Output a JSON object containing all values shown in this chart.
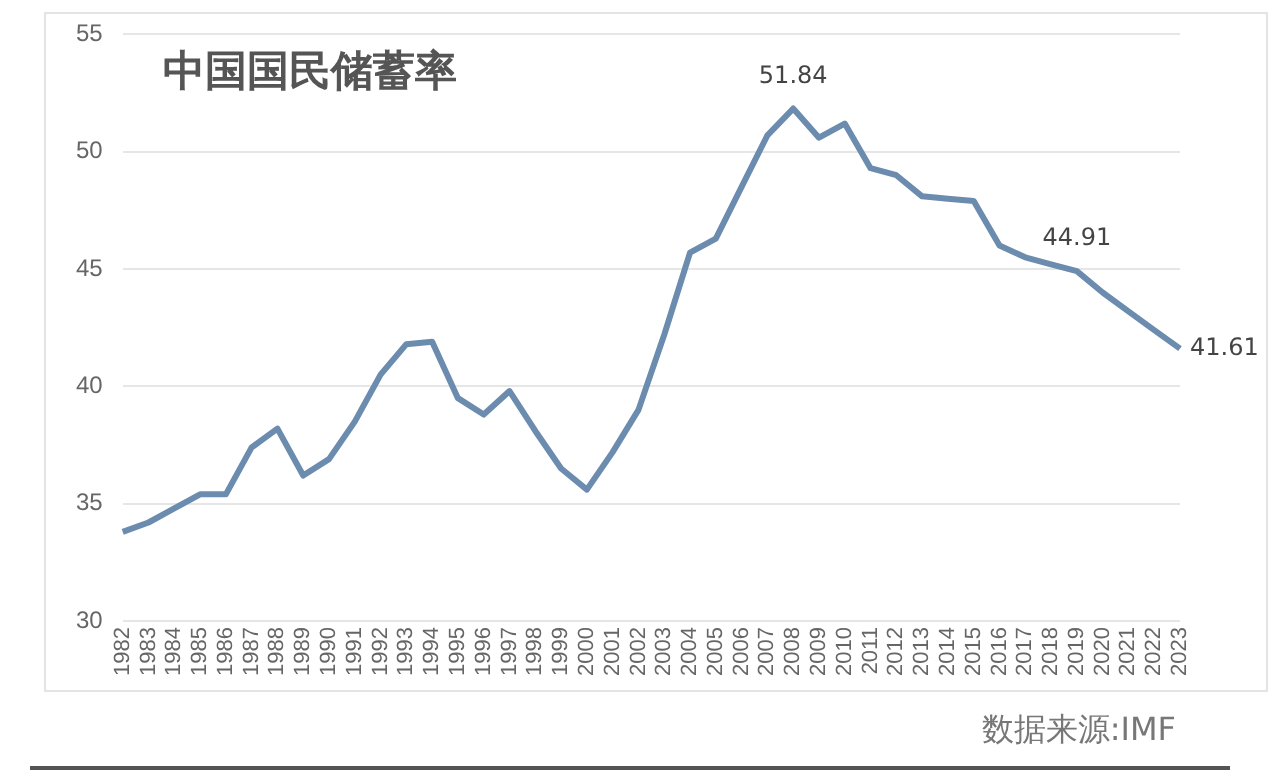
{
  "chart_data": {
    "type": "line",
    "title": "中国国民储蓄率",
    "categories": [
      "1982",
      "1983",
      "1984",
      "1985",
      "1986",
      "1987",
      "1988",
      "1989",
      "1990",
      "1991",
      "1992",
      "1993",
      "1994",
      "1995",
      "1996",
      "1997",
      "1998",
      "1999",
      "2000",
      "2001",
      "2002",
      "2003",
      "2004",
      "2005",
      "2006",
      "2007",
      "2008",
      "2009",
      "2010",
      "2011",
      "2012",
      "2013",
      "2014",
      "2015",
      "2016",
      "2017",
      "2018",
      "2019",
      "2020",
      "2021",
      "2022",
      "2023"
    ],
    "series": [
      {
        "color": "#6b8cae",
        "values": [
          33.8,
          34.2,
          34.8,
          35.4,
          35.4,
          37.4,
          38.2,
          36.2,
          36.9,
          38.5,
          40.5,
          41.8,
          41.9,
          39.5,
          38.8,
          39.8,
          38.1,
          36.5,
          35.6,
          37.2,
          39.0,
          42.2,
          45.7,
          46.3,
          48.5,
          50.7,
          51.84,
          50.6,
          51.2,
          49.3,
          49.0,
          48.1,
          48.0,
          47.9,
          46.0,
          45.5,
          45.2,
          44.91,
          44.0,
          43.2,
          42.4,
          41.61
        ],
        "value_labels": [
          null,
          null,
          null,
          null,
          null,
          null,
          null,
          null,
          null,
          null,
          null,
          null,
          null,
          null,
          null,
          null,
          null,
          null,
          null,
          null,
          null,
          null,
          null,
          null,
          null,
          null,
          "51.84",
          null,
          null,
          null,
          null,
          null,
          null,
          null,
          null,
          null,
          null,
          "44.91",
          null,
          null,
          null,
          "41.61"
        ]
      }
    ],
    "ylim": [
      30,
      55
    ],
    "yticks": [
      30,
      35,
      40,
      45,
      50,
      55
    ],
    "grid": "y",
    "legend": false,
    "marker": "none",
    "line_style": "solid",
    "annotations": [
      "数据来源:IMF"
    ]
  }
}
